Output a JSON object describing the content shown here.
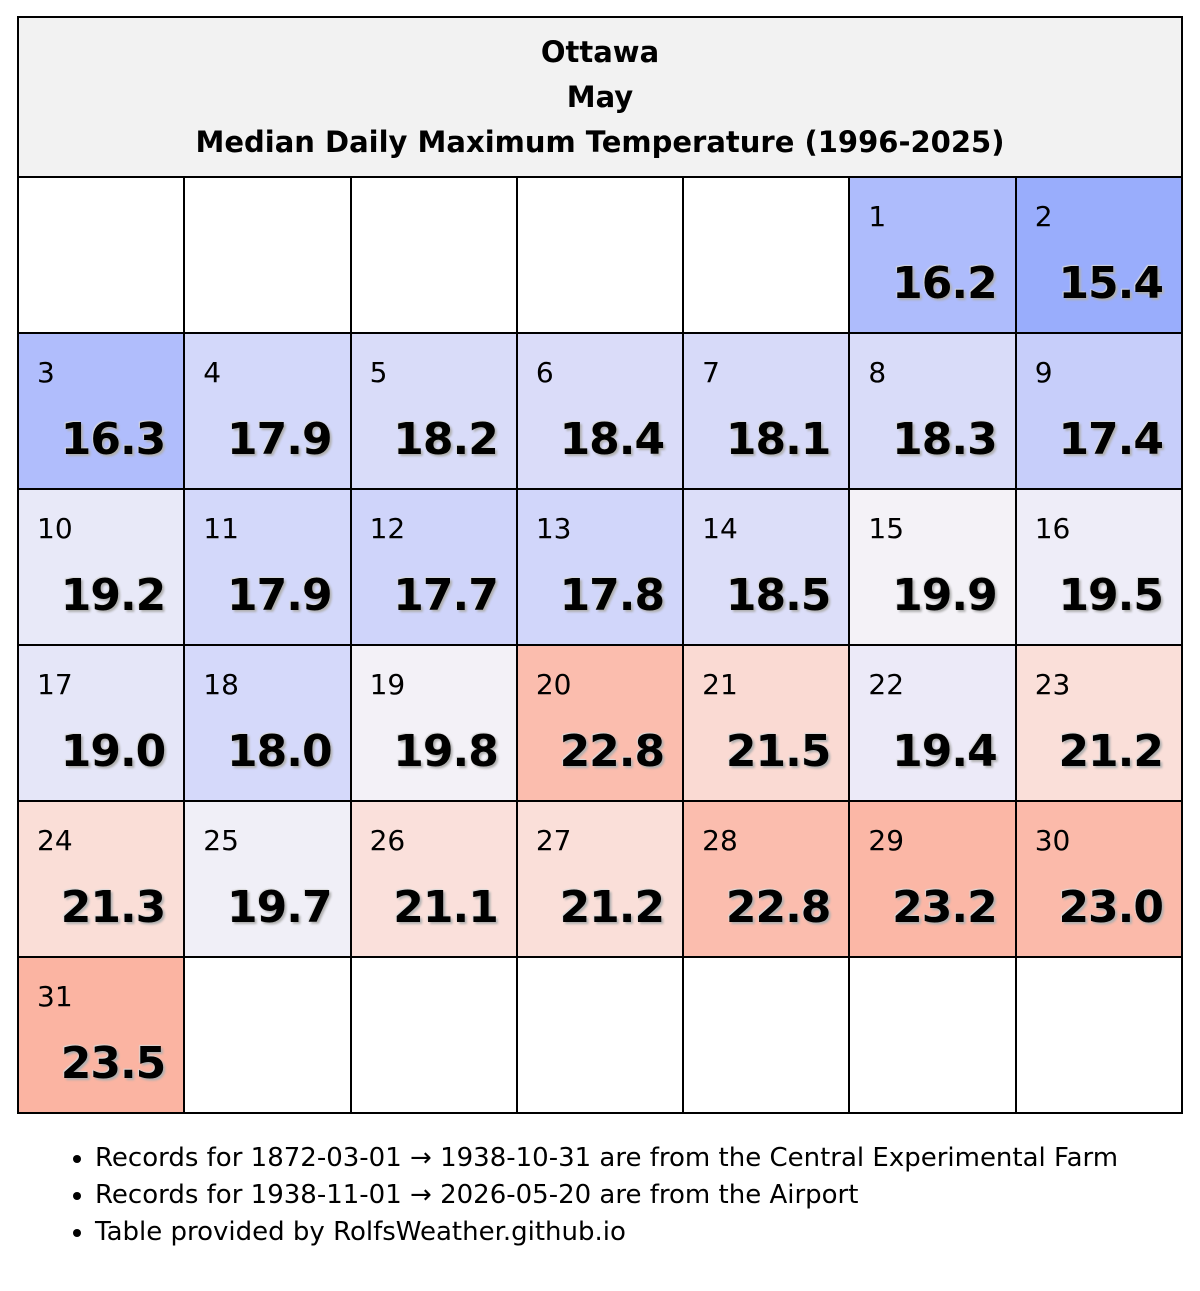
{
  "chart_data": {
    "type": "table",
    "title_lines": [
      "Ottawa",
      "May",
      "Median Daily Maximum Temperature (1996-2025)"
    ],
    "first_weekday_index": 5,
    "days": [
      1,
      2,
      3,
      4,
      5,
      6,
      7,
      8,
      9,
      10,
      11,
      12,
      13,
      14,
      15,
      16,
      17,
      18,
      19,
      20,
      21,
      22,
      23,
      24,
      25,
      26,
      27,
      28,
      29,
      30,
      31
    ],
    "values": [
      "16.2",
      "15.4",
      "16.3",
      "17.9",
      "18.2",
      "18.4",
      "18.1",
      "18.3",
      "17.4",
      "19.2",
      "17.9",
      "17.7",
      "17.8",
      "18.5",
      "19.9",
      "19.5",
      "19.0",
      "18.0",
      "19.8",
      "22.8",
      "21.5",
      "19.4",
      "21.2",
      "21.3",
      "19.7",
      "21.1",
      "21.2",
      "22.8",
      "23.2",
      "23.0",
      "23.5"
    ],
    "cell_colors": [
      "#aebcfc",
      "#99adfc",
      "#b0bdfc",
      "#d3d8fa",
      "#d9dcf9",
      "#dadcf9",
      "#d7daf9",
      "#d9dcf9",
      "#c7cefa",
      "#e8e9f8",
      "#d3d8fa",
      "#cfd4fa",
      "#d1d6fa",
      "#dcdef9",
      "#f4f2f7",
      "#eeedf8",
      "#e5e6f8",
      "#d5d9fa",
      "#f3f1f7",
      "#fbbdae",
      "#fadad3",
      "#eceaf8",
      "#fadfd9",
      "#fadeD7",
      "#f0eff7",
      "#fae0db",
      "#fadfd9",
      "#fbbdae",
      "#fbb7a6",
      "#fbbaaa",
      "#fbb4a2"
    ]
  },
  "notes": [
    "Records for 1872-03-01 → 1938-10-31 are from the Central Experimental Farm",
    "Records for 1938-11-01 → 2026-05-20 are from the Airport",
    "Table provided by RolfsWeather.github.io"
  ]
}
